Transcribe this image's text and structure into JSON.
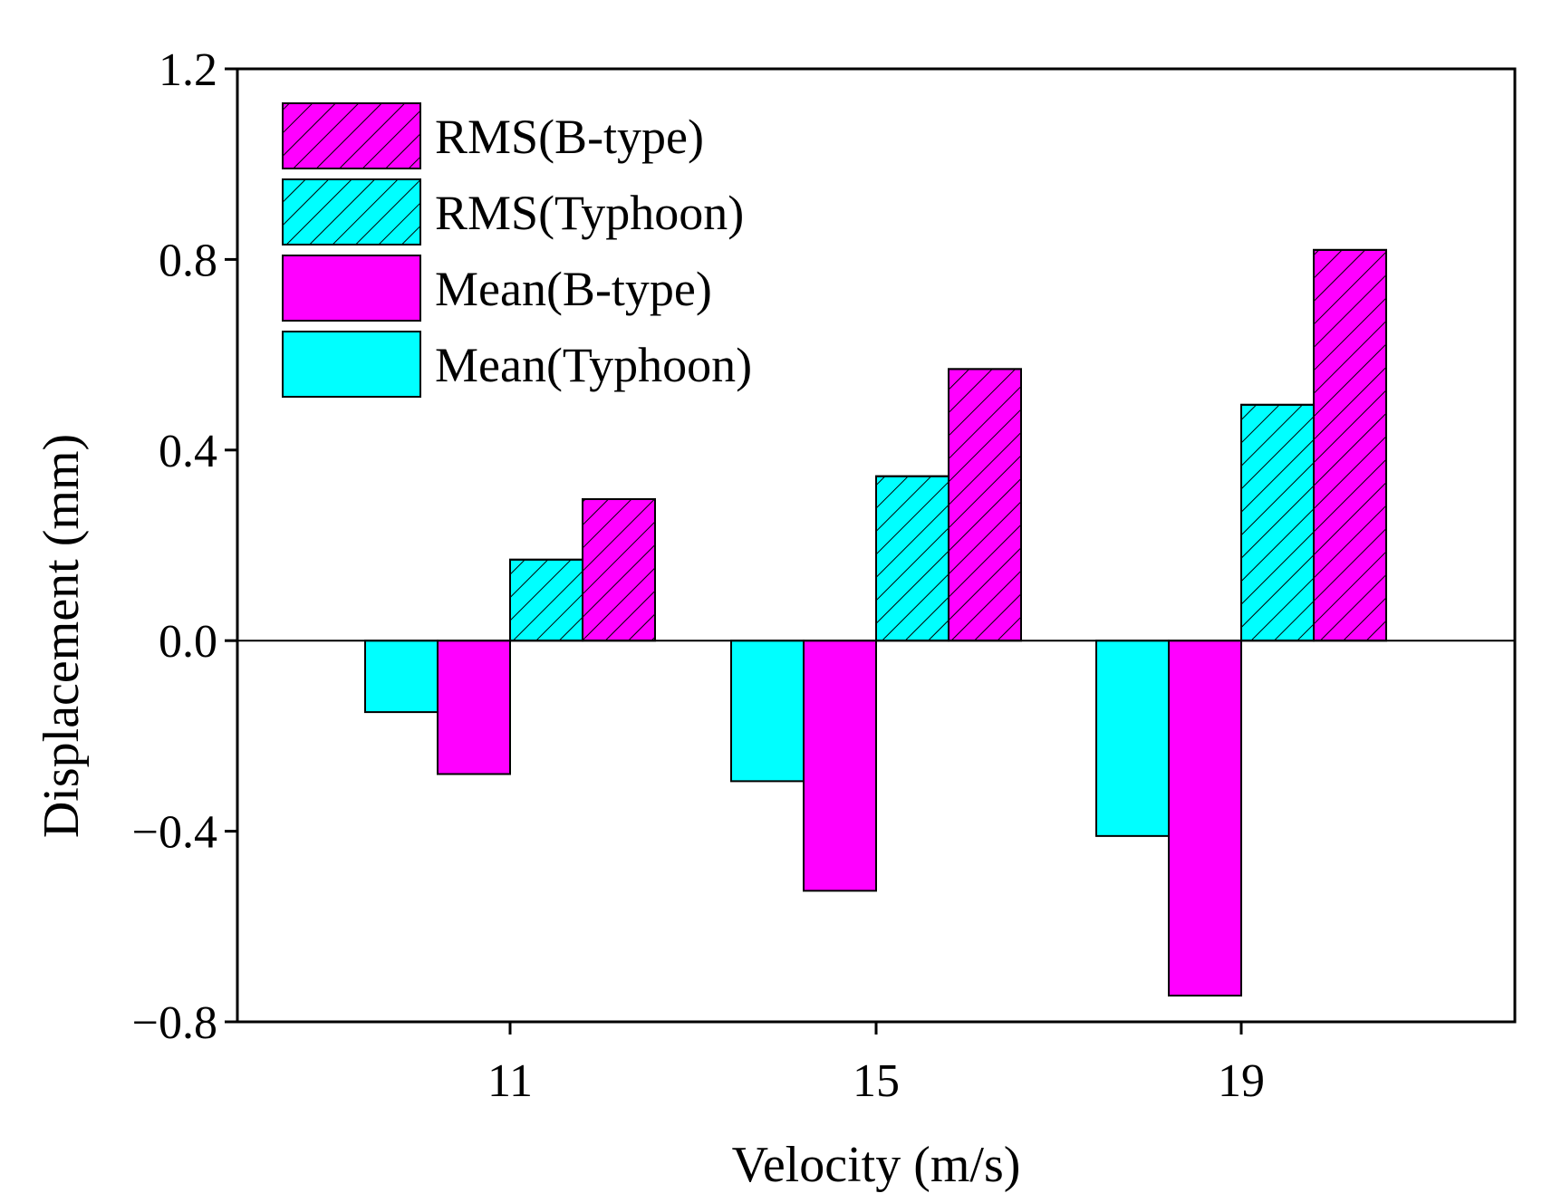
{
  "chart_data": {
    "type": "bar",
    "xlabel": "Velocity (m/s)",
    "ylabel": "Displacement (mm)",
    "ylim": [
      -0.8,
      1.2
    ],
    "yticks": [
      "−0.8",
      "−0.4",
      "0.0",
      "0.4",
      "0.8",
      "1.2"
    ],
    "ytick_values": [
      -0.8,
      -0.4,
      0.0,
      0.4,
      0.8,
      1.2
    ],
    "categories": [
      "11",
      "15",
      "19"
    ],
    "legend_position": "top-left",
    "grid": false,
    "series": [
      {
        "name": "Mean(Typhoon)",
        "values": [
          -0.15,
          -0.295,
          -0.41
        ],
        "color": "#00ffff",
        "hatched": false
      },
      {
        "name": "Mean(B-type)",
        "values": [
          -0.28,
          -0.525,
          -0.745
        ],
        "color": "#ff00ff",
        "hatched": false
      },
      {
        "name": "RMS(Typhoon)",
        "values": [
          0.17,
          0.345,
          0.495
        ],
        "color": "#00ffff",
        "hatched": true
      },
      {
        "name": "RMS(B-type)",
        "values": [
          0.297,
          0.57,
          0.82
        ],
        "color": "#ff00ff",
        "hatched": true
      }
    ],
    "legend_order": [
      "RMS(B-type)",
      "RMS(Typhoon)",
      "Mean(B-type)",
      "Mean(Typhoon)"
    ]
  }
}
